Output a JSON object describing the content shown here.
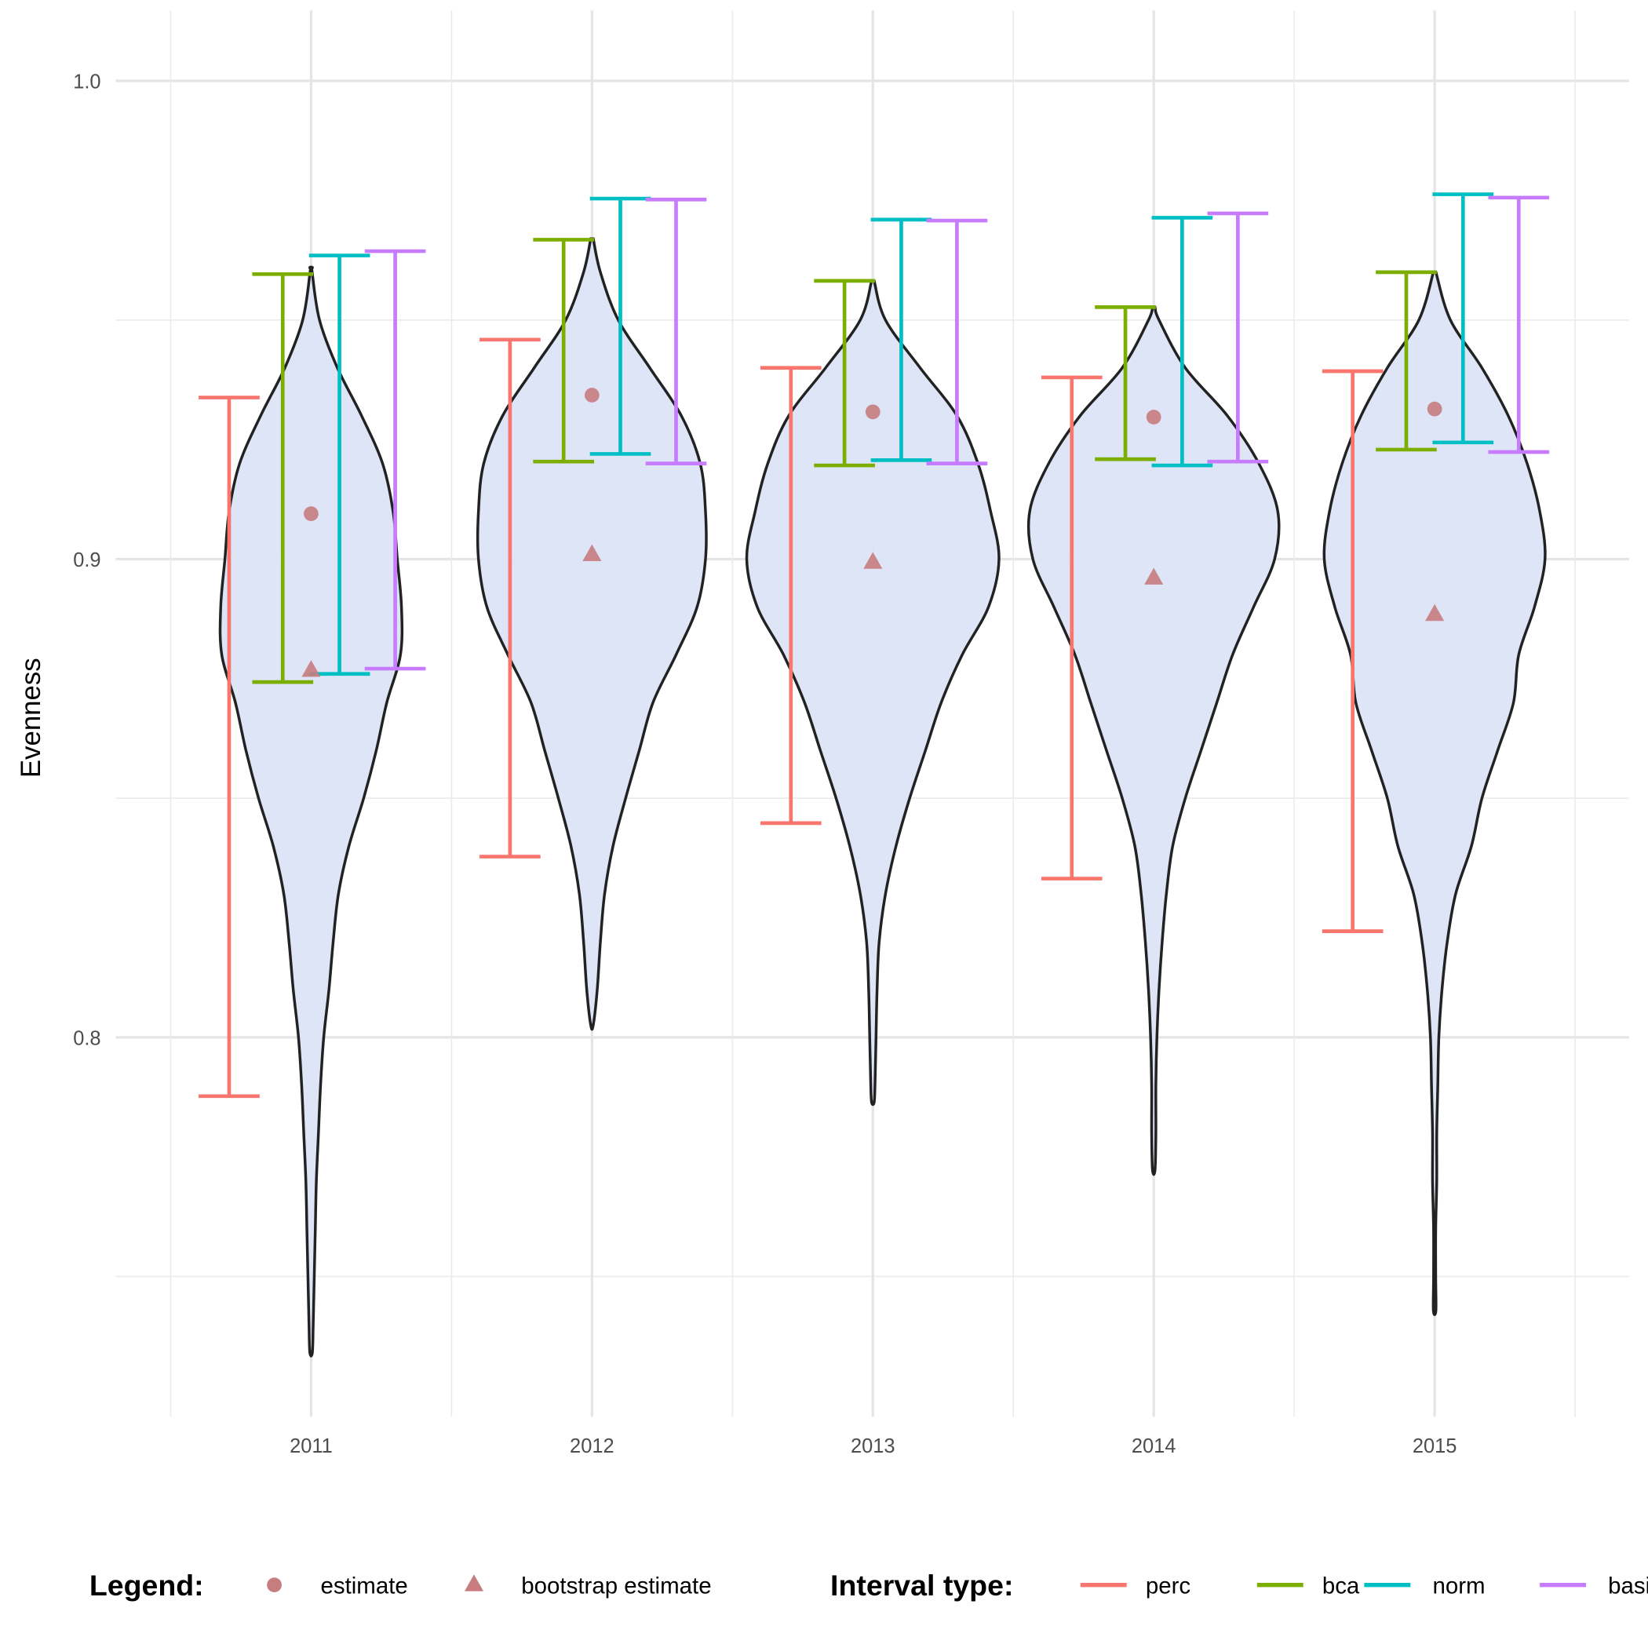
{
  "chart_data": {
    "type": "violin",
    "ylabel": "Evenness",
    "xlabel": "",
    "ylim": [
      0.7206,
      1.015
    ],
    "grid": true,
    "yticks": [
      "0.8",
      "0.9",
      "1.0"
    ],
    "categories": [
      "2011",
      "2012",
      "2013",
      "2014",
      "2015"
    ],
    "legend_placement": "bottom",
    "legend": {
      "title": "Legend:",
      "estimate_label": "estimate",
      "bootstrap_label": "bootstrap estimate",
      "interval_title": "Interval type:",
      "interval_types": [
        "perc",
        "bca",
        "norm",
        "basic"
      ]
    },
    "colors": {
      "perc": "#F8766D",
      "bca": "#7CAE00",
      "norm": "#00BFC4",
      "basic": "#C77CFF",
      "violin_fill": "#DCE4F7",
      "point": "#C77C80"
    },
    "estimate": [
      0.9095,
      0.9343,
      0.9308,
      0.9297,
      0.9314
    ],
    "bootstrap_estimate": [
      0.8767,
      0.9009,
      0.8993,
      0.896,
      0.8884
    ],
    "intervals": {
      "perc": [
        [
          0.7877,
          0.9338
        ],
        [
          0.8378,
          0.9459
        ],
        [
          0.8448,
          0.94
        ],
        [
          0.8332,
          0.938
        ],
        [
          0.8222,
          0.9393
        ]
      ],
      "bca": [
        [
          0.8743,
          0.9596
        ],
        [
          0.9204,
          0.9668
        ],
        [
          0.9196,
          0.9582
        ],
        [
          0.9209,
          0.9527
        ],
        [
          0.9229,
          0.96
        ]
      ],
      "norm": [
        [
          0.876,
          0.9635
        ],
        [
          0.922,
          0.9754
        ],
        [
          0.9207,
          0.971
        ],
        [
          0.9196,
          0.9714
        ],
        [
          0.9244,
          0.9763
        ]
      ],
      "basic": [
        [
          0.8771,
          0.9644
        ],
        [
          0.92,
          0.9752
        ],
        [
          0.92,
          0.9708
        ],
        [
          0.9204,
          0.9723
        ],
        [
          0.9224,
          0.9756
        ]
      ]
    },
    "violin_range": [
      [
        0.7341,
        0.9609
      ],
      [
        0.8026,
        0.967
      ],
      [
        0.7864,
        0.9582
      ],
      [
        0.7723,
        0.9527
      ],
      [
        0.7429,
        0.96
      ]
    ],
    "violin_density_grid": [
      0.97,
      0.96,
      0.95,
      0.94,
      0.93,
      0.92,
      0.91,
      0.9,
      0.89,
      0.88,
      0.87,
      0.86,
      0.85,
      0.84,
      0.83,
      0.82,
      0.81,
      0.8,
      0.79,
      0.78,
      0.77,
      0.76,
      0.75,
      0.74,
      0.73
    ],
    "violin_density": [
      [
        0,
        1,
        8,
        25,
        48,
        68,
        78,
        82,
        86,
        85,
        72,
        62,
        50,
        36,
        26,
        21,
        17,
        12,
        9,
        7,
        5,
        4,
        3,
        2,
        0
      ],
      [
        0,
        8,
        25,
        55,
        85,
        103,
        108,
        108,
        100,
        80,
        58,
        45,
        32,
        20,
        12,
        8,
        5,
        0,
        0,
        0,
        0,
        0,
        0,
        0,
        0
      ],
      [
        0,
        0,
        12,
        45,
        80,
        100,
        112,
        120,
        110,
        85,
        65,
        50,
        35,
        22,
        12,
        6,
        4,
        3,
        2,
        0,
        0,
        0,
        0,
        0,
        0
      ],
      [
        0,
        0,
        5,
        30,
        70,
        100,
        118,
        115,
        95,
        75,
        60,
        45,
        30,
        18,
        12,
        8,
        5,
        3,
        2,
        2,
        0,
        0,
        0,
        0,
        0
      ],
      [
        0,
        0,
        15,
        45,
        70,
        88,
        100,
        105,
        95,
        80,
        75,
        60,
        45,
        35,
        20,
        12,
        7,
        4,
        3,
        2,
        2,
        1,
        1,
        0,
        0
      ]
    ]
  }
}
